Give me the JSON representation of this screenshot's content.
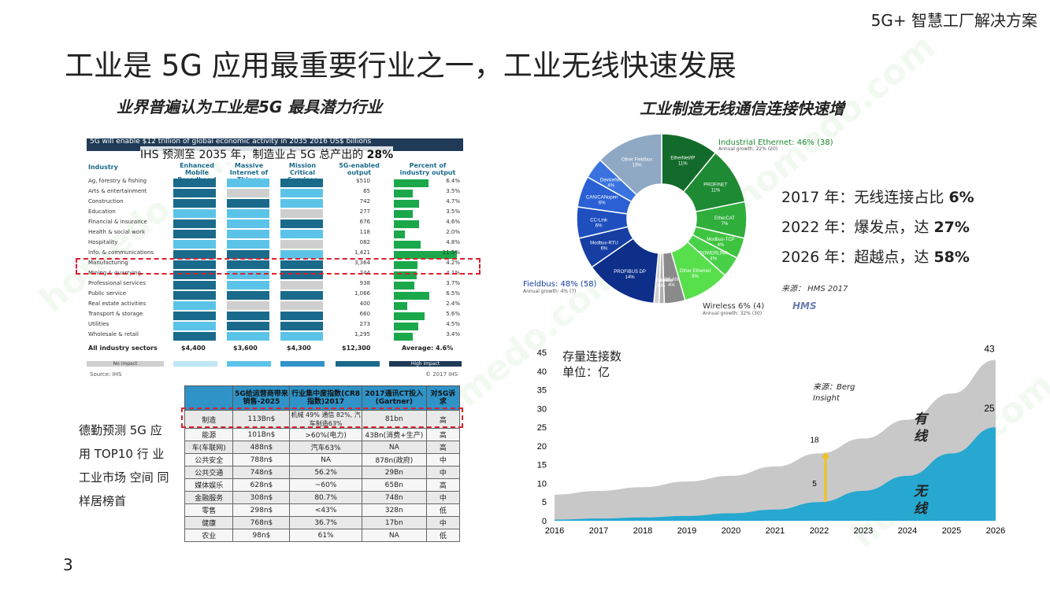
{
  "header": {
    "brand": "5G+ 智慧工厂解决方案"
  },
  "title": "工业是 5G 应用最重要行业之一，工业无线快速发展",
  "left_subtitle": "业界普遍认为工业是5G 最具潜力行业",
  "right_subtitle": "工业制造无线通信连接快速增",
  "page_number": "3",
  "ihs": {
    "banner": "5G will enable $12 trillion of global economic activity in 2035\n2016 US$ billions",
    "note_prefix": "IHS 预测至 2035 年，制造业占 5G 总产出的",
    "note_value": "28%",
    "headers": [
      "Industry",
      "Enhanced Mobile Broadband",
      "Massive Internet of Things",
      "Mission Critical Services",
      "5G-enabled output",
      "Percent of industry output"
    ],
    "rows": [
      {
        "label": "Ag, forestry & fishing",
        "output": "$510",
        "pct": "6.4%",
        "c": [
          "#1a6a8c",
          "#5cc3e8",
          "#1a6a8c"
        ],
        "g": 0.55
      },
      {
        "label": "Arts & entertainment",
        "output": "65",
        "pct": "3.5%",
        "c": [
          "#1a6a8c",
          "#cfcfcf",
          "#5cc3e8"
        ],
        "g": 0.3
      },
      {
        "label": "Construction",
        "output": "742",
        "pct": "4.7%",
        "c": [
          "#1a6a8c",
          "#1a6a8c",
          "#5cc3e8"
        ],
        "g": 0.4
      },
      {
        "label": "Education",
        "output": "277",
        "pct": "3.5%",
        "c": [
          "#5cc3e8",
          "#5cc3e8",
          "#cfcfcf"
        ],
        "g": 0.3
      },
      {
        "label": "Financial & insurance",
        "output": "676",
        "pct": "4.6%",
        "c": [
          "#1a6a8c",
          "#5cc3e8",
          "#1a6a8c"
        ],
        "g": 0.4
      },
      {
        "label": "Health & social work",
        "output": "118",
        "pct": "2.0%",
        "c": [
          "#1a6a8c",
          "#5cc3e8",
          "#5cc3e8"
        ],
        "g": 0.18
      },
      {
        "label": "Hospitality",
        "output": "082",
        "pct": "4.8%",
        "c": [
          "#5cc3e8",
          "#5cc3e8",
          "#cfcfcf"
        ],
        "g": 0.42
      },
      {
        "label": "Info. & communications",
        "output": "1,421",
        "pct": "11.5%",
        "c": [
          "#1a6a8c",
          "#1a6a8c",
          "#5cc3e8"
        ],
        "g": 1.0
      },
      {
        "label": "Manufacturing",
        "output": "3,364",
        "pct": "4.2%",
        "c": [
          "#1a6a8c",
          "#1a6a8c",
          "#1a6a8c"
        ],
        "g": 0.37
      },
      {
        "label": "Mining & quarrying",
        "output": "244",
        "pct": "4.1%",
        "c": [
          "#1a6a8c",
          "#5cc3e8",
          "#1a6a8c"
        ],
        "g": 0.36
      },
      {
        "label": "Professional services",
        "output": "938",
        "pct": "3.7%",
        "c": [
          "#1a6a8c",
          "#5cc3e8",
          "#cfcfcf"
        ],
        "g": 0.32
      },
      {
        "label": "Public service",
        "output": "1,066",
        "pct": "6.5%",
        "c": [
          "#1a6a8c",
          "#1a6a8c",
          "#1a6a8c"
        ],
        "g": 0.56
      },
      {
        "label": "Real estate activities",
        "output": "400",
        "pct": "2.4%",
        "c": [
          "#5cc3e8",
          "#cfcfcf",
          "#cfcfcf"
        ],
        "g": 0.21
      },
      {
        "label": "Transport & storage",
        "output": "660",
        "pct": "5.6%",
        "c": [
          "#1a6a8c",
          "#1a6a8c",
          "#1a6a8c"
        ],
        "g": 0.49
      },
      {
        "label": "Utilities",
        "output": "273",
        "pct": "4.5%",
        "c": [
          "#5cc3e8",
          "#1a6a8c",
          "#1a6a8c"
        ],
        "g": 0.39
      },
      {
        "label": "Wholesale & retail",
        "output": "1,295",
        "pct": "3.4%",
        "c": [
          "#1a6a8c",
          "#5cc3e8",
          "#5cc3e8"
        ],
        "g": 0.3
      }
    ],
    "total_label": "All industry sectors",
    "totals": [
      "$4,400",
      "$3,600",
      "$4,300",
      "$12,300",
      "Average: 4.6%"
    ],
    "legend_low": "No impact",
    "legend_high": "High impact",
    "source": "Source: IHS",
    "copyright": "© 2017 IHS"
  },
  "deloitte_text": "德勤预测 5G 应 用 TOP10 行 业 工业市场 空间 同样居榜首",
  "deloitte_table": {
    "headers": [
      "",
      "5G给运营商带来销售-2025",
      "行业集中度指数(CR8指数)2017",
      "2017通讯CT投入(Gartner)",
      "对5G诉求"
    ],
    "rows": [
      [
        "制造",
        "113Bn$",
        "机械 49% 通信 82%, 汽车制造63%",
        "81bn",
        "高"
      ],
      [
        "能源",
        "101Bn$",
        ">60%(电力)",
        "43Bn(消费+生产)",
        "高"
      ],
      [
        "车(车联网)",
        "488n$",
        "汽车63%",
        "NA",
        "高"
      ],
      [
        "公共安全",
        "788n$",
        "NA",
        "878n(政府)",
        "中"
      ],
      [
        "公共交通",
        "748n$",
        "56.2%",
        "29Bn",
        "中"
      ],
      [
        "媒体娱乐",
        "628n$",
        "~60%",
        "65Bn",
        "高"
      ],
      [
        "金融服务",
        "308n$",
        "80.7%",
        "748n",
        "中"
      ],
      [
        "零售",
        "298n$",
        "<43%",
        "328n",
        "低"
      ],
      [
        "健康",
        "768n$",
        "36.7%",
        "17bn",
        "中"
      ],
      [
        "农业",
        "98n$",
        "61%",
        "NA",
        "低"
      ]
    ]
  },
  "donut": {
    "segments": [
      {
        "name": "EtherNet/IP",
        "pct": "11%",
        "value": 11,
        "color": "#136b2b"
      },
      {
        "name": "PROFINET",
        "pct": "11%",
        "value": 11,
        "color": "#1e8a33"
      },
      {
        "name": "EtherCAT",
        "pct": "7%",
        "value": 7,
        "color": "#2fae3c"
      },
      {
        "name": "Modbus-TCP",
        "pct": "4%",
        "value": 4,
        "color": "#3fc440"
      },
      {
        "name": "POWERLINK",
        "pct": "4%",
        "value": 4,
        "color": "#48d148"
      },
      {
        "name": "Other Ethernet",
        "pct": "9%",
        "value": 9,
        "color": "#58e04c"
      },
      {
        "name": "WLAN",
        "pct": "4%",
        "value": 4,
        "color": "#8a8a8a"
      },
      {
        "name": "Bluetooth",
        "pct": "1%",
        "value": 1,
        "color": "#b0b0b0"
      },
      {
        "name": "Other Wireless",
        "pct": "1%",
        "value": 1,
        "color": "#d0d0d0"
      },
      {
        "name": "PROFIBUS DP",
        "pct": "14%",
        "value": 14,
        "color": "#0d2f8a"
      },
      {
        "name": "Modbus-RTU",
        "pct": "6%",
        "value": 6,
        "color": "#163ea3"
      },
      {
        "name": "CC-Link",
        "pct": "6%",
        "value": 6,
        "color": "#1f4fbf"
      },
      {
        "name": "CAN/CANopen",
        "pct": "6%",
        "value": 6,
        "color": "#2a60d4"
      },
      {
        "name": "DeviceNet",
        "pct": "4%",
        "value": 4,
        "color": "#3a73e0"
      },
      {
        "name": "Other Fieldbus",
        "pct": "13%",
        "value": 13,
        "color": "#8fa8c4"
      }
    ],
    "label_ethernet": "Industrial Ethernet: 46% (38)",
    "label_ethernet_growth": "Annual growth: 22% (20)",
    "label_fieldbus": "Fieldbus: 48% (58)",
    "label_fieldbus_growth": "Annual growth: 4% (7)",
    "label_wireless": "Wireless 6% (4)",
    "label_wireless_growth": "Annual growth: 32% (30)"
  },
  "stats": [
    {
      "text": "2017 年：无线连接占比 ",
      "value": "6%"
    },
    {
      "text": "2022 年：爆发点，达 ",
      "value": "27%"
    },
    {
      "text": "2026 年：超越点，达 ",
      "value": "58%"
    }
  ],
  "source_hms": "来源： HMS 2017",
  "hms_logo": "HMS",
  "chart_data": {
    "type": "area",
    "title": "存量连接数",
    "unit": "单位：亿",
    "x": [
      "2016",
      "2017",
      "2018",
      "2019",
      "2020",
      "2021",
      "2022",
      "2023",
      "2024",
      "2025",
      "2026"
    ],
    "ylim": [
      0,
      45
    ],
    "yticks": [
      0,
      5,
      10,
      15,
      20,
      25,
      30,
      35,
      40,
      45
    ],
    "series": [
      {
        "name": "有线",
        "values": [
          7,
          8,
          9,
          10.5,
          12,
          14.5,
          18,
          22,
          27,
          34,
          43
        ],
        "color": "#c8c8c8"
      },
      {
        "name": "无线",
        "values": [
          0.3,
          0.6,
          0.9,
          1.3,
          2,
          3,
          5,
          8,
          12,
          18,
          25
        ],
        "color": "#26a8d0"
      }
    ],
    "annotations": [
      {
        "x": "2022",
        "label_top": "18",
        "label_bottom": "5"
      },
      {
        "x": "2026",
        "label_top": "43",
        "label_bottom": "25"
      }
    ],
    "source_note": "来源：Berg Insight"
  }
}
